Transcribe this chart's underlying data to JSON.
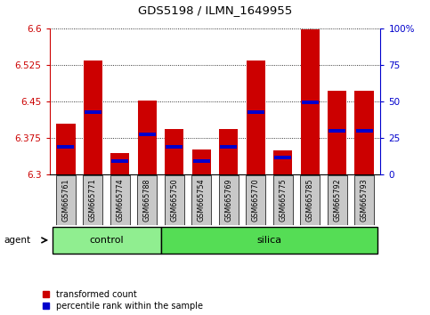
{
  "title": "GDS5198 / ILMN_1649955",
  "samples": [
    "GSM665761",
    "GSM665771",
    "GSM665774",
    "GSM665788",
    "GSM665750",
    "GSM665754",
    "GSM665769",
    "GSM665770",
    "GSM665775",
    "GSM665785",
    "GSM665792",
    "GSM665793"
  ],
  "groups": [
    "control",
    "control",
    "control",
    "control",
    "silica",
    "silica",
    "silica",
    "silica",
    "silica",
    "silica",
    "silica",
    "silica"
  ],
  "red_values": [
    6.405,
    6.535,
    6.345,
    6.453,
    6.393,
    6.352,
    6.393,
    6.535,
    6.35,
    6.598,
    6.472,
    6.472
  ],
  "blue_values": [
    6.358,
    6.428,
    6.328,
    6.383,
    6.358,
    6.328,
    6.358,
    6.428,
    6.335,
    6.448,
    6.39,
    6.39
  ],
  "ymin": 6.3,
  "ymax": 6.6,
  "yticks_left": [
    6.3,
    6.375,
    6.45,
    6.525,
    6.6
  ],
  "yticks_right": [
    0,
    25,
    50,
    75,
    100
  ],
  "bar_color": "#cc0000",
  "blue_color": "#0000cc",
  "control_color": "#90ee90",
  "silica_color": "#55dd55",
  "legend_red": "transformed count",
  "legend_blue": "percentile rank within the sample",
  "bar_width": 0.7,
  "n_control": 4,
  "n_silica": 8
}
